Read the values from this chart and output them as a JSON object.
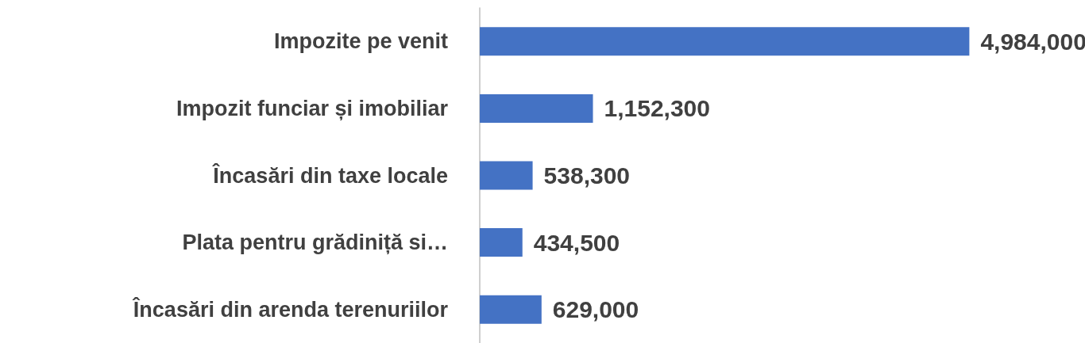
{
  "chart_data": {
    "type": "bar",
    "orientation": "horizontal",
    "categories": [
      "Impozite pe venit",
      "Impozit funciar și imobiliar",
      "Încasări din taxe locale",
      "Plata pentru grădiniță si…",
      "Încasări din arenda terenuriilor"
    ],
    "values": [
      4984000,
      1152300,
      538300,
      434500,
      629000
    ],
    "value_labels": [
      "4,984,000",
      "1,152,300",
      "538,300",
      "434,500",
      "629,000"
    ],
    "color": "#4472c4"
  }
}
